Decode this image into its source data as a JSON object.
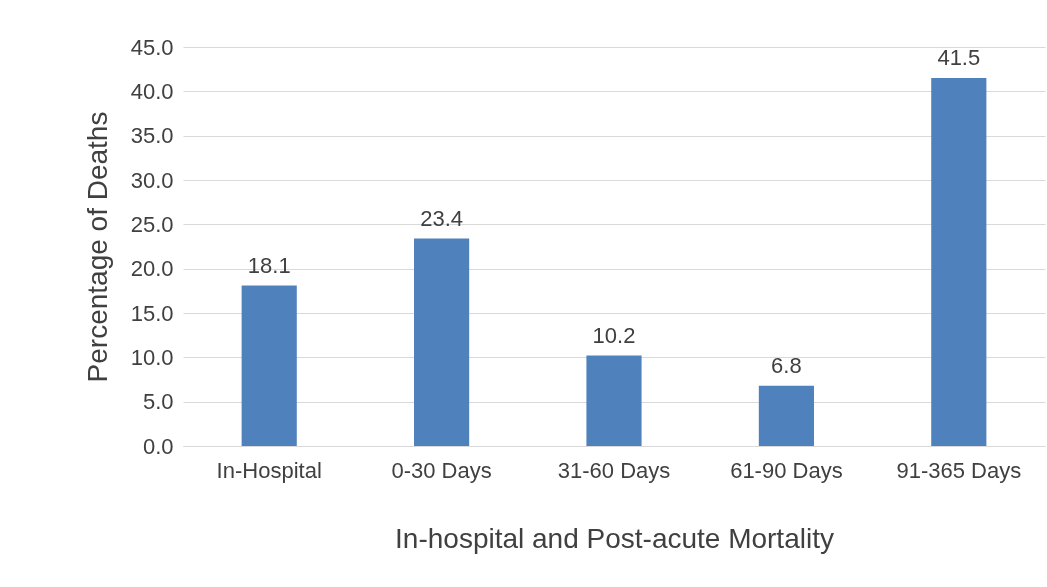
{
  "chart_data": {
    "type": "bar",
    "xlabel": "In-hospital and Post-acute Mortality",
    "ylabel": "Percentage of Deaths",
    "categories": [
      "In-Hospital",
      "0-30 Days",
      "31-60 Days",
      "61-90 Days",
      "91-365 Days"
    ],
    "values": [
      18.1,
      23.4,
      10.2,
      6.8,
      41.5
    ],
    "color": "#4f81bd",
    "ylim": [
      0,
      45
    ],
    "yticks": [
      {
        "value": 0,
        "label": "0.0"
      },
      {
        "value": 5,
        "label": "5.0"
      },
      {
        "value": 10,
        "label": "10.0"
      },
      {
        "value": 15,
        "label": "15.0"
      },
      {
        "value": 20,
        "label": "20.0"
      },
      {
        "value": 25,
        "label": "25.0"
      },
      {
        "value": 30,
        "label": "30.0"
      },
      {
        "value": 35,
        "label": "35.0"
      },
      {
        "value": 40,
        "label": "40.0"
      },
      {
        "value": 45,
        "label": "45.0"
      }
    ],
    "grid": "y",
    "data_labels": true
  }
}
